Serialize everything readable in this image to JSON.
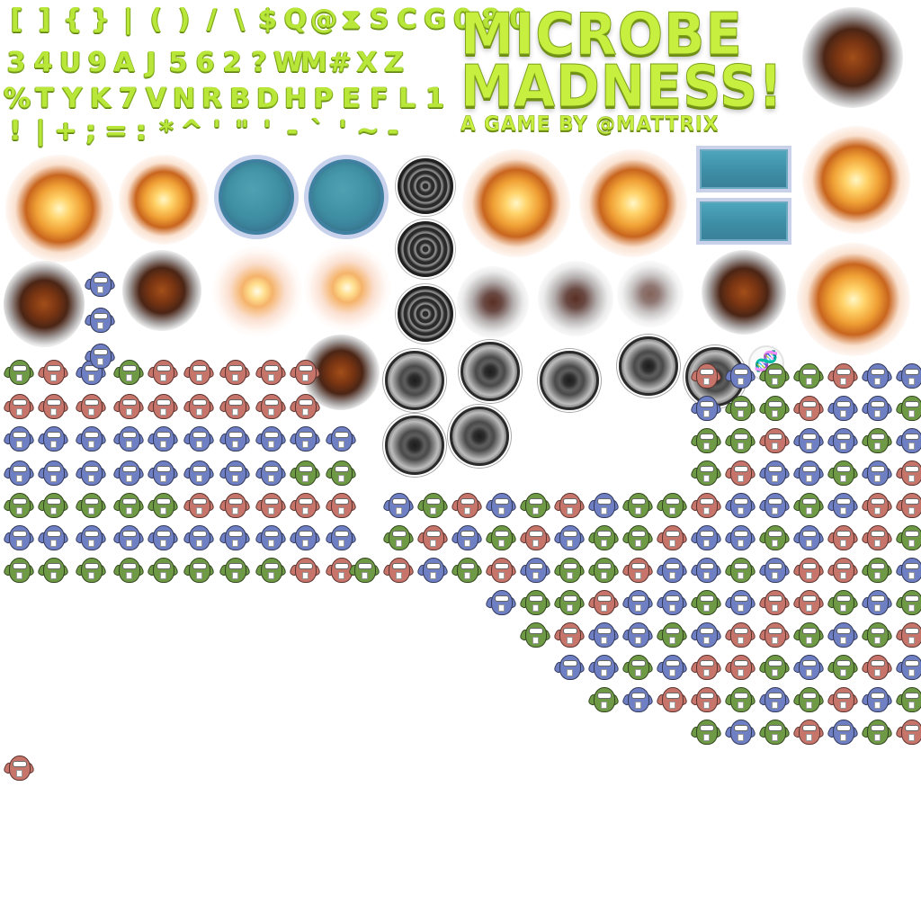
{
  "font_sheet": {
    "rows": [
      [
        "[",
        "]",
        "{",
        "}",
        "|",
        "(",
        ")",
        "/",
        "\\",
        "$",
        "Q",
        "@",
        "⧗",
        "S",
        "C",
        "G",
        "0",
        "8",
        "0"
      ],
      [
        "3",
        "4",
        "U",
        "9",
        "A",
        "J",
        "5",
        "6",
        "2",
        "?",
        "W",
        "M",
        "#",
        "X",
        "Z"
      ],
      [
        "%",
        "T",
        "Y",
        "K",
        "7",
        "V",
        "N",
        "R",
        "B",
        "D",
        "H",
        "P",
        "E",
        "F",
        "L",
        "1"
      ],
      [
        "!",
        "|",
        "+",
        ";",
        "=",
        ":",
        "*",
        "^",
        "'",
        "\"",
        "'",
        "-",
        "`",
        "'",
        "~",
        "-"
      ]
    ],
    "color": "#b8e639"
  },
  "logo": {
    "line1": "MICROBE",
    "line2": "MADNESS!",
    "byline": "A GAME BY @MATTRIX",
    "color": "#c7ef3f"
  },
  "icons": {
    "dna": "🧬"
  },
  "microbe_colors": {
    "green": "#6f9a45",
    "blue": "#6f7fc4",
    "red": "#c7746a"
  }
}
